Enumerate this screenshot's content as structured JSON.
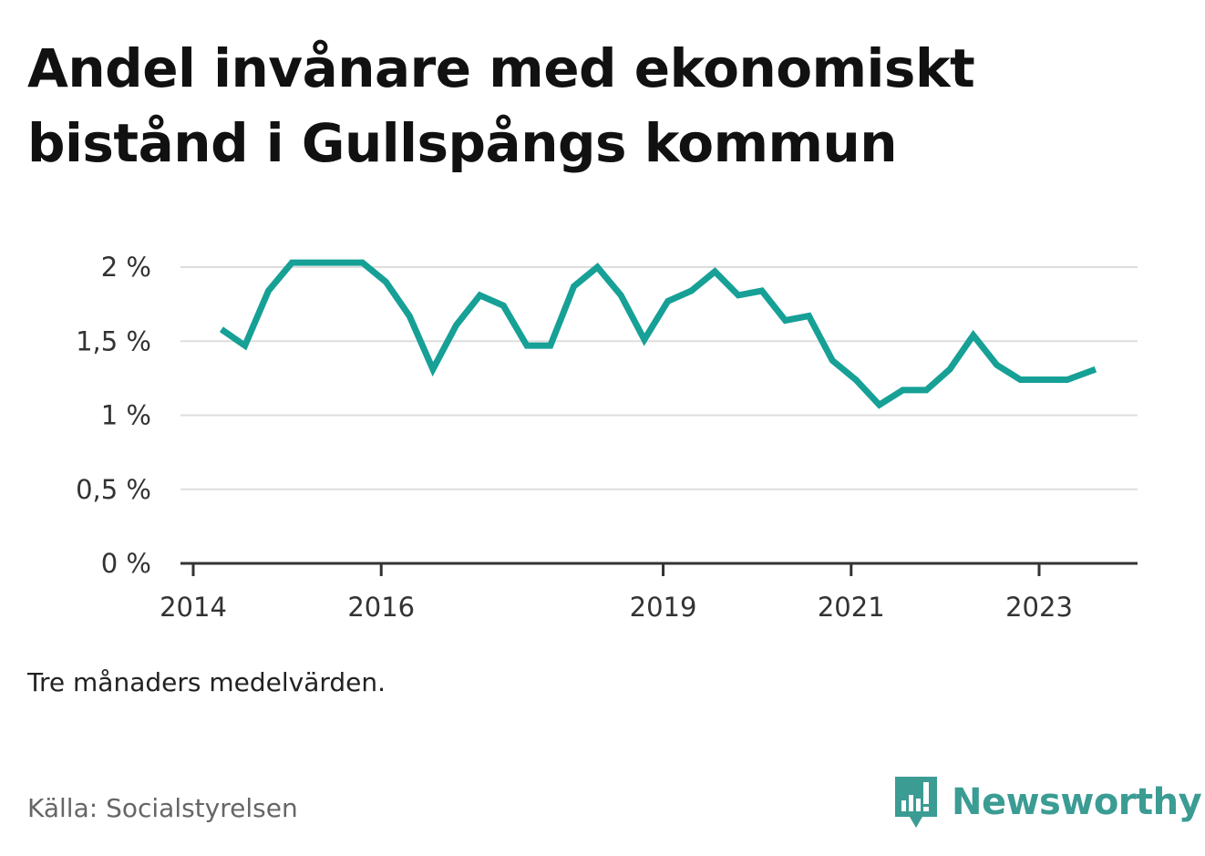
{
  "title": "Andel invånare med ekonomiskt bistånd i Gullspångs kommun",
  "note": "Tre månaders medelvärden.",
  "source": "Källa: Socialstyrelsen",
  "brand": {
    "name": "Newsworthy",
    "icon": "newsworthy-logo-icon",
    "color": "#3b9c94"
  },
  "colors": {
    "line": "#16a096",
    "grid": "#dddddd",
    "axis": "#333333"
  },
  "chart_data": {
    "type": "line",
    "title": "Andel invånare med ekonomiskt bistånd i Gullspångs kommun",
    "xlabel": "",
    "ylabel": "",
    "ylim": [
      0,
      2
    ],
    "xlim": [
      2014,
      2024.1
    ],
    "y_ticks": [
      {
        "value": 0,
        "label": "0 %"
      },
      {
        "value": 0.5,
        "label": "0,5 %"
      },
      {
        "value": 1,
        "label": "1 %"
      },
      {
        "value": 1.5,
        "label": "1,5 %"
      },
      {
        "value": 2,
        "label": "2 %"
      }
    ],
    "x_ticks": [
      {
        "value": 2014,
        "label": "2014"
      },
      {
        "value": 2016,
        "label": "2016"
      },
      {
        "value": 2019,
        "label": "2019"
      },
      {
        "value": 2021,
        "label": "2021"
      },
      {
        "value": 2023,
        "label": "2023"
      }
    ],
    "grid": true,
    "legend": "none",
    "series": [
      {
        "x": [
          2014.3,
          2014.55,
          2014.8,
          2015.05,
          2015.3,
          2015.55,
          2015.8,
          2016.05,
          2016.3,
          2016.55,
          2016.8,
          2017.05,
          2017.3,
          2017.55,
          2017.8,
          2018.05,
          2018.3,
          2018.55,
          2018.8,
          2019.05,
          2019.3,
          2019.55,
          2019.8,
          2020.05,
          2020.3,
          2020.55,
          2020.8,
          2021.05,
          2021.3,
          2021.55,
          2021.8,
          2022.05,
          2022.3,
          2022.55,
          2022.8,
          2023.05,
          2023.3,
          2023.6
        ],
        "values": [
          1.58,
          1.47,
          1.84,
          2.03,
          2.03,
          2.03,
          2.03,
          1.9,
          1.67,
          1.31,
          1.61,
          1.81,
          1.74,
          1.47,
          1.47,
          1.87,
          2.0,
          1.81,
          1.51,
          1.77,
          1.84,
          1.97,
          1.81,
          1.84,
          1.64,
          1.67,
          1.37,
          1.24,
          1.07,
          1.17,
          1.17,
          1.31,
          1.54,
          1.34,
          1.24,
          1.24,
          1.24,
          1.31
        ]
      }
    ]
  }
}
